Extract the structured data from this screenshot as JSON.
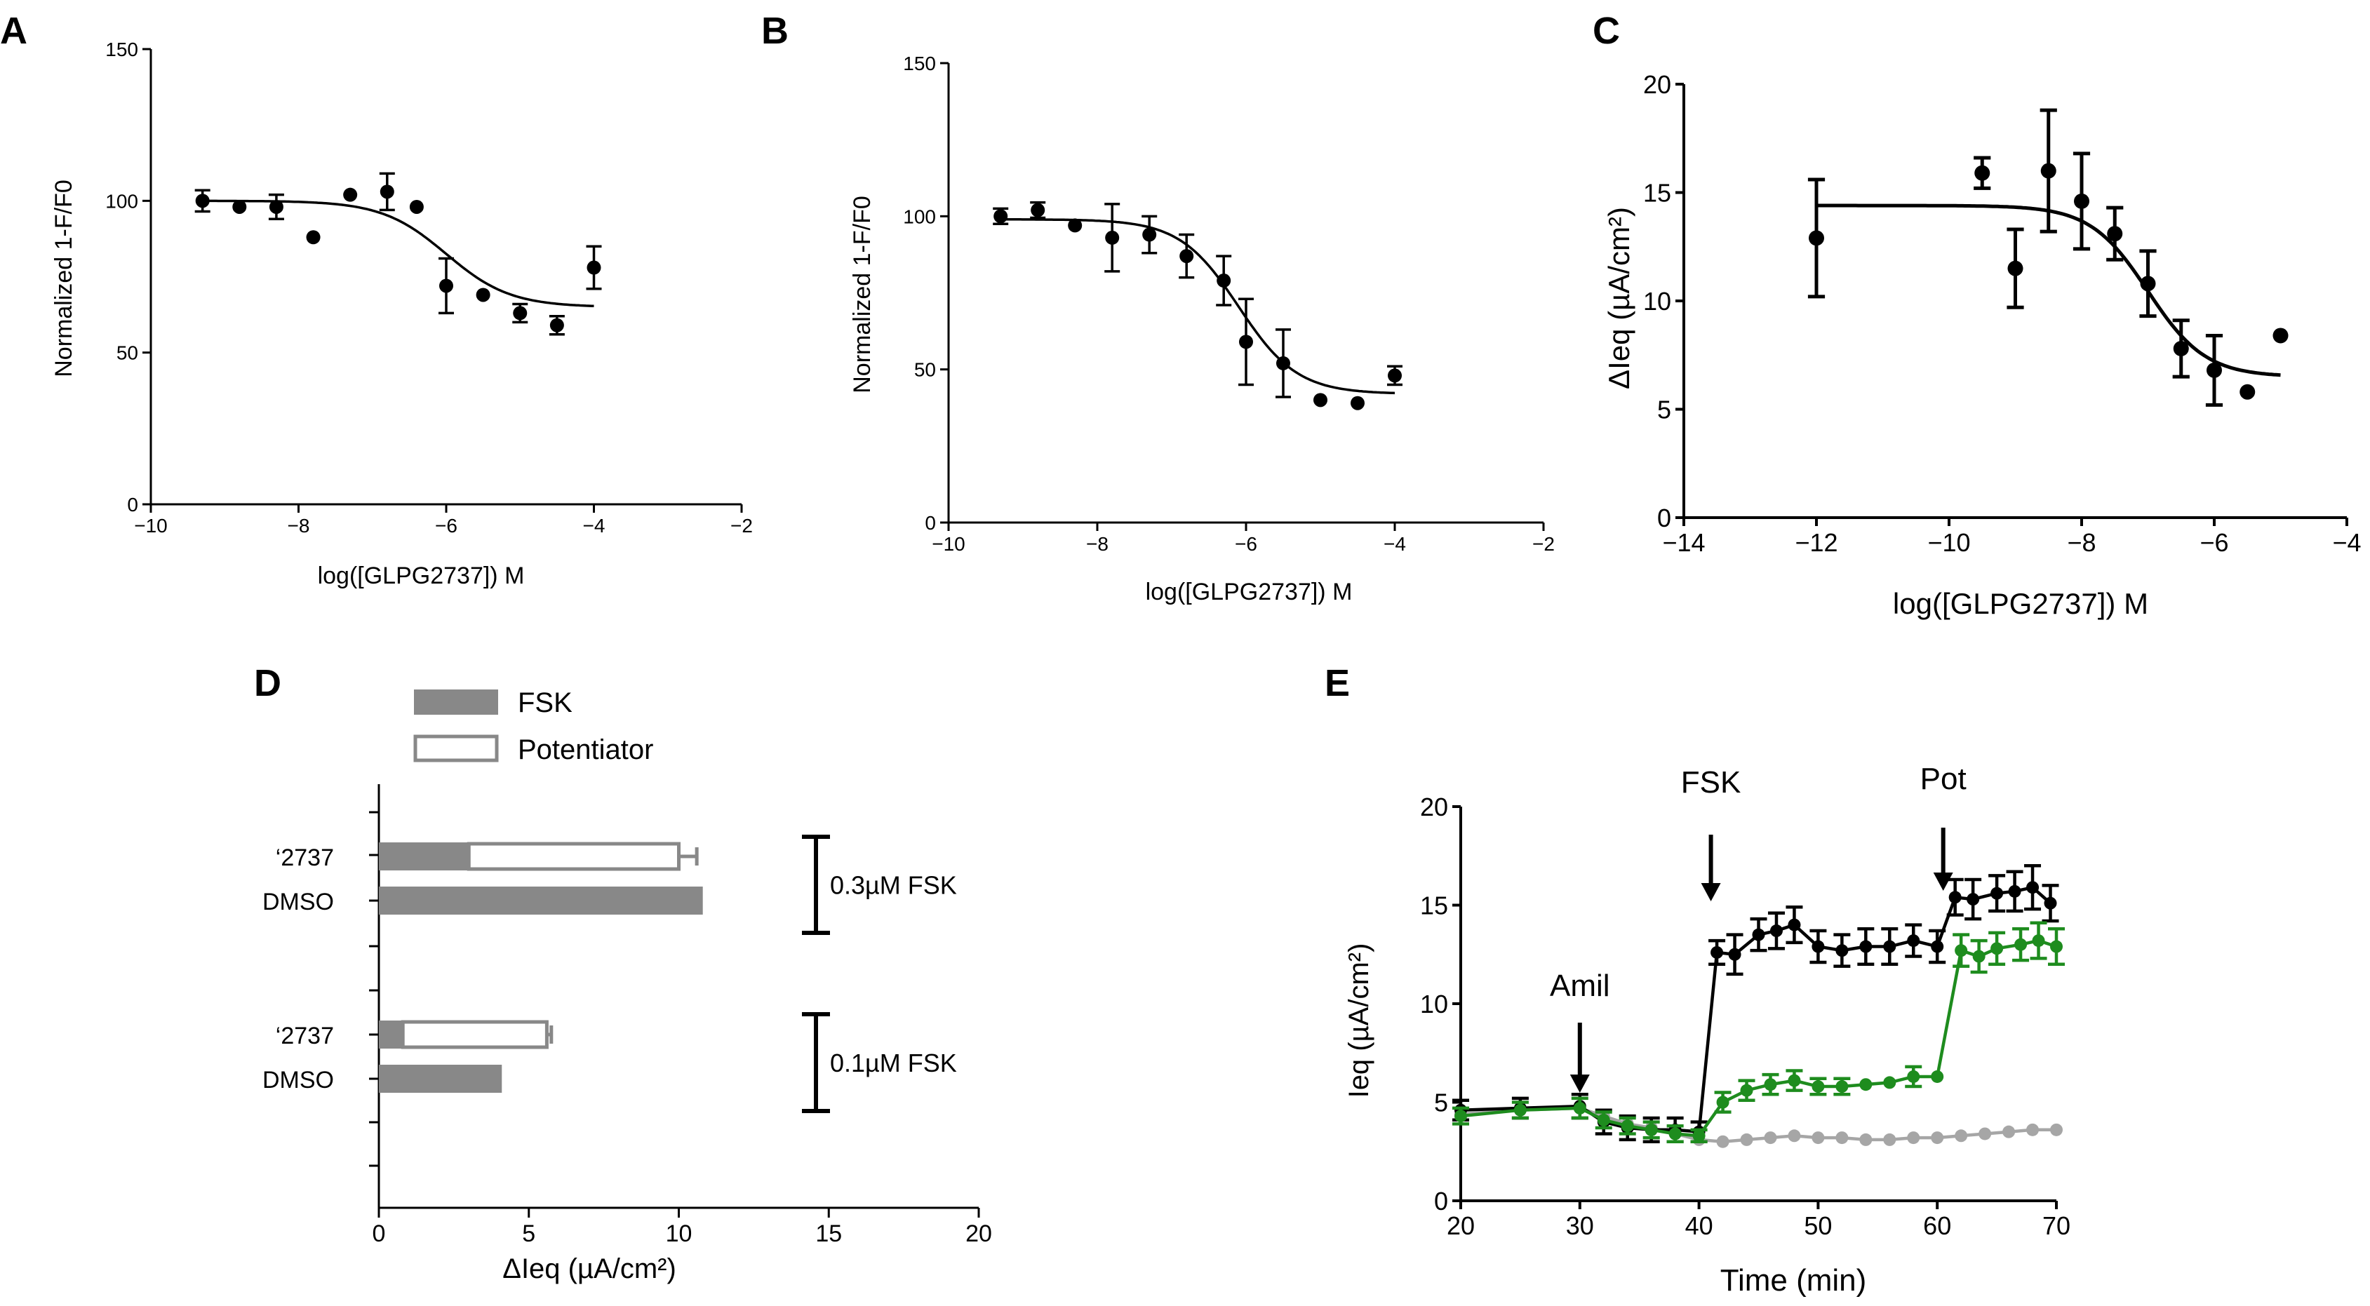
{
  "chart_data": [
    {
      "id": "A",
      "panel_label": "A",
      "type": "scatter",
      "xlabel": "log([GLPG2737]) M",
      "ylabel": "Normalized 1-F/F0",
      "xlim": [
        -10,
        -2
      ],
      "ylim": [
        0,
        150
      ],
      "xticks": [
        -10,
        -8,
        -6,
        -4,
        -2
      ],
      "yticks": [
        0,
        50,
        100,
        150
      ],
      "points": [
        {
          "x": -9.3,
          "y": 100,
          "err": 3.5
        },
        {
          "x": -8.8,
          "y": 98,
          "err": 0
        },
        {
          "x": -8.3,
          "y": 98,
          "err": 4
        },
        {
          "x": -7.8,
          "y": 88,
          "err": 0
        },
        {
          "x": -7.3,
          "y": 102,
          "err": 0
        },
        {
          "x": -6.8,
          "y": 103,
          "err": 6
        },
        {
          "x": -6.4,
          "y": 98,
          "err": 0
        },
        {
          "x": -6.0,
          "y": 72,
          "err": 9
        },
        {
          "x": -5.5,
          "y": 69,
          "err": 0
        },
        {
          "x": -5.0,
          "y": 63,
          "err": 3
        },
        {
          "x": -4.5,
          "y": 59,
          "err": 3
        },
        {
          "x": -4.0,
          "y": 78,
          "err": 7
        }
      ],
      "fit": {
        "top": 100,
        "bottom": 65,
        "ec50_log": -6.0,
        "hill": 1.0,
        "x_range": [
          -9.3,
          -4.0
        ]
      }
    },
    {
      "id": "B",
      "panel_label": "B",
      "type": "scatter",
      "xlabel": "log([GLPG2737]) M",
      "ylabel": "Normalized 1-F/F0",
      "xlim": [
        -10,
        -2
      ],
      "ylim": [
        0,
        150
      ],
      "xticks": [
        -10,
        -8,
        -6,
        -4,
        -2
      ],
      "yticks": [
        0,
        50,
        100,
        150
      ],
      "points": [
        {
          "x": -9.3,
          "y": 100,
          "err": 2.5
        },
        {
          "x": -8.8,
          "y": 102,
          "err": 2.5
        },
        {
          "x": -8.3,
          "y": 97,
          "err": 0
        },
        {
          "x": -7.8,
          "y": 93,
          "err": 11
        },
        {
          "x": -7.3,
          "y": 94,
          "err": 6
        },
        {
          "x": -6.8,
          "y": 87,
          "err": 7
        },
        {
          "x": -6.3,
          "y": 79,
          "err": 8
        },
        {
          "x": -6.0,
          "y": 59,
          "err": 14
        },
        {
          "x": -5.5,
          "y": 52,
          "err": 11
        },
        {
          "x": -5.0,
          "y": 40,
          "err": 0
        },
        {
          "x": -4.5,
          "y": 39,
          "err": 0
        },
        {
          "x": -4.0,
          "y": 48,
          "err": 3
        }
      ],
      "fit": {
        "top": 99,
        "bottom": 42,
        "ec50_log": -6.1,
        "hill": 1.1,
        "x_range": [
          -9.3,
          -4.0
        ]
      }
    },
    {
      "id": "C",
      "panel_label": "C",
      "type": "scatter",
      "xlabel": "log([GLPG2737]) M",
      "ylabel": "ΔIeq (µA/cm²)",
      "xlim": [
        -14,
        -4
      ],
      "ylim": [
        0,
        20
      ],
      "xticks": [
        -14,
        -12,
        -10,
        -8,
        -6,
        -4
      ],
      "yticks": [
        0,
        5,
        10,
        15,
        20
      ],
      "points": [
        {
          "x": -12.0,
          "y": 12.9,
          "err": 2.7
        },
        {
          "x": -9.5,
          "y": 15.9,
          "err": 0.7
        },
        {
          "x": -9.0,
          "y": 11.5,
          "err": 1.8
        },
        {
          "x": -8.5,
          "y": 16.0,
          "err": 2.8
        },
        {
          "x": -8.0,
          "y": 14.6,
          "err": 2.2
        },
        {
          "x": -7.5,
          "y": 13.1,
          "err": 1.2
        },
        {
          "x": -7.0,
          "y": 10.8,
          "err": 1.5
        },
        {
          "x": -6.5,
          "y": 7.8,
          "err": 1.3
        },
        {
          "x": -6.0,
          "y": 6.8,
          "err": 1.6
        },
        {
          "x": -5.5,
          "y": 5.8,
          "err": 0
        },
        {
          "x": -5.0,
          "y": 8.4,
          "err": 0
        }
      ],
      "fit": {
        "top": 14.4,
        "bottom": 6.5,
        "ec50_log": -7.0,
        "hill": 1.0,
        "x_range": [
          -12.0,
          -5.0
        ]
      }
    },
    {
      "id": "D",
      "panel_label": "D",
      "type": "bar",
      "orientation": "horizontal",
      "xlabel": "ΔIeq (µA/cm²)",
      "xlim": [
        0,
        20
      ],
      "xticks": [
        0,
        5,
        10,
        15,
        20
      ],
      "legend": [
        {
          "name": "FSK",
          "color": "#888888",
          "fill": "solid"
        },
        {
          "name": "Potentiator",
          "color": "#888888",
          "fill": "open"
        }
      ],
      "groups": [
        {
          "bracket_label": "0.3µM FSK",
          "rows": [
            {
              "label": "‘2737",
              "fsk": 3.0,
              "potentiator_end": 10.0,
              "err": 0.6
            },
            {
              "label": "DMSO",
              "fsk": 10.8
            }
          ]
        },
        {
          "bracket_label": "0.1µM FSK",
          "rows": [
            {
              "label": "‘2737",
              "fsk": 0.8,
              "potentiator_end": 5.6,
              "err": 0.15
            },
            {
              "label": "DMSO",
              "fsk": 4.1
            }
          ]
        }
      ]
    },
    {
      "id": "E",
      "panel_label": "E",
      "type": "line",
      "xlabel": "Time (min)",
      "ylabel": "Ieq (µA/cm²)",
      "xlim": [
        20,
        70
      ],
      "ylim": [
        0,
        20
      ],
      "xticks": [
        20,
        30,
        40,
        50,
        60,
        70
      ],
      "yticks": [
        0,
        5,
        10,
        15,
        20
      ],
      "annotations": [
        {
          "text": "Amil",
          "x": 30
        },
        {
          "text": "FSK",
          "x": 41
        },
        {
          "text": "Pot",
          "x": 60.5
        }
      ],
      "series": [
        {
          "name": "grey",
          "color": "#a6a6a6",
          "x": [
            20,
            25,
            30,
            32,
            34,
            36,
            38,
            40,
            42,
            44,
            46,
            48,
            50,
            52,
            54,
            56,
            58,
            60,
            62,
            64,
            66,
            68,
            70
          ],
          "y": [
            4.4,
            4.6,
            4.7,
            4.3,
            3.9,
            3.7,
            3.4,
            3.1,
            3.0,
            3.1,
            3.2,
            3.3,
            3.2,
            3.2,
            3.1,
            3.1,
            3.2,
            3.2,
            3.3,
            3.4,
            3.5,
            3.6,
            3.6
          ],
          "err": [
            0,
            0,
            0,
            0,
            0,
            0,
            0,
            0,
            0,
            0,
            0,
            0,
            0,
            0,
            0,
            0,
            0,
            0,
            0,
            0,
            0,
            0,
            0
          ]
        },
        {
          "name": "black",
          "color": "#000000",
          "x": [
            20,
            25,
            30,
            32,
            34,
            36,
            38,
            40,
            41.5,
            43,
            45,
            46.5,
            48,
            50,
            52,
            54,
            56,
            58,
            60,
            61.5,
            63,
            65,
            66.5,
            68,
            69.5
          ],
          "y": [
            4.6,
            4.7,
            4.8,
            4.0,
            3.7,
            3.6,
            3.6,
            3.5,
            12.6,
            12.5,
            13.5,
            13.7,
            14.0,
            12.9,
            12.7,
            12.9,
            12.9,
            13.2,
            12.9,
            15.4,
            15.3,
            15.6,
            15.7,
            15.9,
            15.1
          ],
          "err": [
            0.5,
            0.5,
            0.6,
            0.6,
            0.6,
            0.6,
            0.6,
            0.5,
            0.6,
            1.0,
            0.8,
            0.9,
            0.9,
            0.8,
            0.8,
            0.9,
            0.9,
            0.8,
            0.8,
            0.9,
            1.0,
            0.9,
            1.0,
            1.1,
            0.9
          ]
        },
        {
          "name": "green",
          "color": "#1e8c1e",
          "x": [
            20,
            25,
            30,
            32,
            34,
            36,
            38,
            40,
            42,
            44,
            46,
            48,
            50,
            52,
            54,
            56,
            58,
            60,
            62,
            63.5,
            65,
            67,
            68.5,
            70
          ],
          "y": [
            4.3,
            4.6,
            4.7,
            4.1,
            3.8,
            3.6,
            3.4,
            3.3,
            5.0,
            5.6,
            5.9,
            6.1,
            5.8,
            5.8,
            5.9,
            6.0,
            6.3,
            6.3,
            12.7,
            12.4,
            12.8,
            13.0,
            13.2,
            12.9
          ],
          "err": [
            0.4,
            0.4,
            0.5,
            0.4,
            0.4,
            0.4,
            0.4,
            0.3,
            0.5,
            0.5,
            0.5,
            0.5,
            0.4,
            0.4,
            0,
            0,
            0.5,
            0,
            0.8,
            0.8,
            0.8,
            0.8,
            0.9,
            0.9
          ]
        }
      ]
    }
  ]
}
